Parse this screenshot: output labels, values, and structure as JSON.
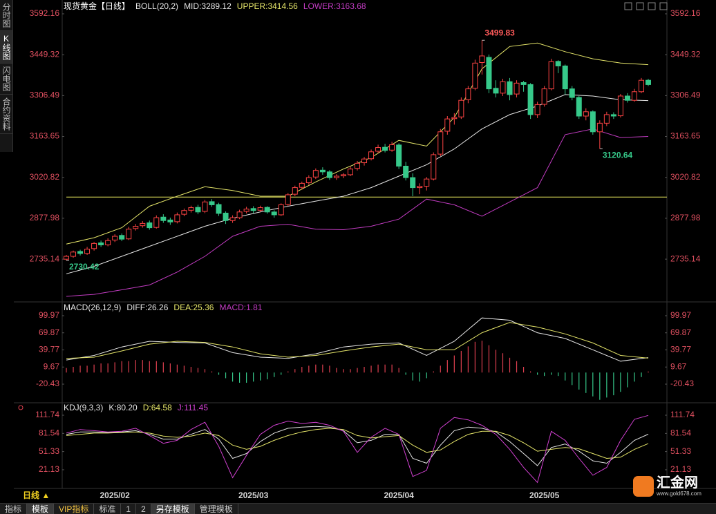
{
  "ui": {
    "sidebar": [
      "分时图",
      "K线图",
      "闪电图",
      "合约资料"
    ],
    "period": "日线 ▲",
    "dates": [
      "2025/02",
      "2025/03",
      "2025/04",
      "2025/05"
    ],
    "toolbar": [
      "指标",
      "模板",
      "VIP指标",
      "标准",
      "1",
      "2",
      "另存模板",
      "管理模板"
    ],
    "logo": "汇金网",
    "logo_url": "www.gold678.com"
  },
  "chart_data": [
    {
      "type": "candlestick",
      "title": "现货黄金【日线】",
      "indicator": "BOLL(20,2)",
      "up_color": "#ff4444",
      "down_color": "#36c98a",
      "tick_color": "#e05060",
      "candles": [
        [
          2735,
          2750,
          2730.42,
          2745
        ],
        [
          2745,
          2765,
          2740,
          2760
        ],
        [
          2762,
          2768,
          2748,
          2755
        ],
        [
          2755,
          2778,
          2750,
          2770
        ],
        [
          2772,
          2795,
          2765,
          2790
        ],
        [
          2792,
          2800,
          2778,
          2785
        ],
        [
          2785,
          2808,
          2780,
          2800
        ],
        [
          2802,
          2822,
          2795,
          2815
        ],
        [
          2818,
          2825,
          2798,
          2805
        ],
        [
          2806,
          2848,
          2802,
          2840
        ],
        [
          2842,
          2858,
          2835,
          2850
        ],
        [
          2852,
          2868,
          2845,
          2860
        ],
        [
          2862,
          2870,
          2838,
          2845
        ],
        [
          2846,
          2888,
          2842,
          2880
        ],
        [
          2882,
          2892,
          2862,
          2870
        ],
        [
          2872,
          2880,
          2855,
          2865
        ],
        [
          2866,
          2898,
          2860,
          2890
        ],
        [
          2892,
          2912,
          2885,
          2905
        ],
        [
          2906,
          2922,
          2898,
          2915
        ],
        [
          2916,
          2925,
          2892,
          2900
        ],
        [
          2902,
          2942,
          2896,
          2935
        ],
        [
          2936,
          2945,
          2918,
          2925
        ],
        [
          2926,
          2932,
          2886,
          2895
        ],
        [
          2896,
          2902,
          2858,
          2870
        ],
        [
          2870,
          2888,
          2862,
          2880
        ],
        [
          2880,
          2908,
          2875,
          2900
        ],
        [
          2902,
          2918,
          2895,
          2910
        ],
        [
          2912,
          2920,
          2896,
          2905
        ],
        [
          2906,
          2922,
          2900,
          2915
        ],
        [
          2916,
          2920,
          2894,
          2900
        ],
        [
          2900,
          2906,
          2880,
          2890
        ],
        [
          2890,
          2930,
          2886,
          2925
        ],
        [
          2926,
          2966,
          2920,
          2960
        ],
        [
          2962,
          2992,
          2955,
          2985
        ],
        [
          2986,
          3006,
          2978,
          3000
        ],
        [
          3002,
          3028,
          2995,
          3020
        ],
        [
          3022,
          3052,
          3015,
          3045
        ],
        [
          3046,
          3056,
          3030,
          3040
        ],
        [
          3040,
          3046,
          3012,
          3020
        ],
        [
          3020,
          3032,
          3012,
          3025
        ],
        [
          3026,
          3036,
          3018,
          3030
        ],
        [
          3030,
          3058,
          3025,
          3050
        ],
        [
          3052,
          3078,
          3045,
          3070
        ],
        [
          3072,
          3092,
          3062,
          3085
        ],
        [
          3086,
          3118,
          3080,
          3110
        ],
        [
          3112,
          3135,
          3105,
          3125
        ],
        [
          3126,
          3138,
          3108,
          3115
        ],
        [
          3116,
          3145,
          3110,
          3135
        ],
        [
          3134,
          3140,
          3050,
          3060
        ],
        [
          3060,
          3075,
          3010,
          3020
        ],
        [
          3020,
          3035,
          2955,
          2985
        ],
        [
          2985,
          3000,
          2962,
          2990
        ],
        [
          2990,
          3022,
          2975,
          3015
        ],
        [
          3015,
          3108,
          3010,
          3100
        ],
        [
          3102,
          3190,
          3095,
          3180
        ],
        [
          3182,
          3235,
          3170,
          3225
        ],
        [
          3226,
          3245,
          3205,
          3230
        ],
        [
          3232,
          3300,
          3225,
          3290
        ],
        [
          3292,
          3340,
          3280,
          3330
        ],
        [
          3332,
          3432,
          3325,
          3420
        ],
        [
          3422,
          3499.83,
          3380,
          3445
        ],
        [
          3440,
          3450,
          3315,
          3330
        ],
        [
          3332,
          3360,
          3300,
          3315
        ],
        [
          3315,
          3365,
          3305,
          3355
        ],
        [
          3355,
          3368,
          3290,
          3310
        ],
        [
          3312,
          3360,
          3300,
          3350
        ],
        [
          3352,
          3358,
          3320,
          3345
        ],
        [
          3345,
          3350,
          3225,
          3240
        ],
        [
          3240,
          3285,
          3228,
          3275
        ],
        [
          3276,
          3340,
          3268,
          3330
        ],
        [
          3330,
          3435,
          3325,
          3425
        ],
        [
          3426,
          3430,
          3385,
          3410
        ],
        [
          3410,
          3415,
          3310,
          3330
        ],
        [
          3330,
          3340,
          3290,
          3300
        ],
        [
          3300,
          3305,
          3225,
          3235
        ],
        [
          3235,
          3262,
          3220,
          3250
        ],
        [
          3250,
          3255,
          3170,
          3180
        ],
        [
          3180,
          3220,
          3120.64,
          3210
        ],
        [
          3210,
          3250,
          3200,
          3240
        ],
        [
          3240,
          3248,
          3225,
          3235
        ],
        [
          3236,
          3312,
          3230,
          3305
        ],
        [
          3305,
          3315,
          3282,
          3290
        ],
        [
          3290,
          3330,
          3285,
          3320
        ],
        [
          3320,
          3368,
          3315,
          3360
        ],
        [
          3360,
          3365,
          3340,
          3345
        ]
      ],
      "series": [
        {
          "name": "MID:3289.12",
          "color": "#e6e6e6",
          "values": [
            2684,
            2710,
            2745,
            2780,
            2815,
            2850,
            2878,
            2900,
            2920,
            2938,
            2955,
            2985,
            3025,
            3065,
            3120,
            3190,
            3240,
            3270,
            3310,
            3305,
            3292,
            3289.12
          ]
        },
        {
          "name": "UPPER:3414.56",
          "color": "#e6e66a",
          "values": [
            2788,
            2810,
            2845,
            2920,
            2955,
            2988,
            2975,
            2955,
            2955,
            3005,
            3050,
            3090,
            3150,
            3130,
            3230,
            3400,
            3478,
            3490,
            3460,
            3435,
            3420,
            3414.56
          ]
        },
        {
          "name": "LOWER:3163.68",
          "color": "#c23cc2",
          "values": [
            2605,
            2612,
            2628,
            2645,
            2690,
            2745,
            2815,
            2850,
            2857,
            2840,
            2838,
            2850,
            2875,
            2945,
            2925,
            2885,
            2935,
            2985,
            3170,
            3190,
            3160,
            3163.68
          ]
        }
      ],
      "horizontal_line": {
        "value": 2952,
        "color": "#f0f060"
      },
      "ylim": [
        2588.2,
        3621.1
      ],
      "yticks": [
        2735.14,
        2877.98,
        3020.82,
        3163.65,
        3306.49,
        3449.32,
        3592.16
      ]
    },
    {
      "type": "macd",
      "indicator": "MACD(26,12,9)",
      "tick_color": "#e05060",
      "series": [
        {
          "name": "DIFF:26.26",
          "color": "#e6e6e6",
          "values": [
            22,
            30,
            45,
            55,
            53,
            52,
            35,
            27,
            25,
            33,
            45,
            50,
            52,
            30,
            55,
            96,
            92,
            70,
            60,
            40,
            20,
            26.26
          ]
        },
        {
          "name": "DEA:25.36",
          "color": "#e6e66a",
          "values": [
            25,
            27,
            38,
            50,
            55,
            53,
            45,
            33,
            27,
            30,
            38,
            45,
            50,
            40,
            40,
            70,
            88,
            80,
            68,
            52,
            30,
            25.36
          ]
        }
      ],
      "histogram": {
        "name": "MACD:1.81",
        "color": "#c23cc2",
        "up_color": "#e04050",
        "down_color": "#36c98a",
        "values": [
          8,
          10,
          12,
          12,
          14,
          16,
          16,
          18,
          20,
          20,
          22,
          22,
          20,
          20,
          18,
          16,
          14,
          12,
          10,
          8,
          6,
          2,
          -4,
          -10,
          -16,
          -18,
          -18,
          -16,
          -14,
          -12,
          -8,
          -4,
          2,
          6,
          10,
          12,
          14,
          14,
          12,
          8,
          6,
          6,
          8,
          10,
          12,
          14,
          14,
          14,
          8,
          -4,
          -14,
          -16,
          -10,
          2,
          12,
          22,
          30,
          38,
          46,
          54,
          56,
          48,
          40,
          34,
          26,
          20,
          10,
          2,
          -4,
          -6,
          -4,
          -6,
          -14,
          -22,
          -30,
          -36,
          -42,
          -48,
          -44,
          -40,
          -34,
          -26,
          -16,
          -8,
          1.81
        ]
      },
      "ylim": [
        -52,
        120.6
      ],
      "yticks": [
        -20.43,
        9.67,
        39.77,
        69.87,
        99.97
      ]
    },
    {
      "type": "line",
      "indicator": "KDJ(9,3,3)",
      "tick_color": "#e05060",
      "series": [
        {
          "name": "K:80.20",
          "color": "#e6e6e6",
          "values": [
            80,
            84,
            84,
            83,
            84,
            86,
            80,
            72,
            72,
            80,
            88,
            72,
            40,
            48,
            68,
            82,
            90,
            92,
            93,
            92,
            86,
            66,
            70,
            80,
            80,
            40,
            32,
            62,
            86,
            92,
            90,
            84,
            68,
            48,
            28,
            58,
            64,
            52,
            36,
            32,
            50,
            70,
            80.2
          ]
        },
        {
          "name": "D:64.58",
          "color": "#e6e66a",
          "values": [
            78,
            80,
            82,
            82,
            83,
            84,
            82,
            77,
            75,
            77,
            82,
            78,
            62,
            55,
            60,
            70,
            78,
            84,
            88,
            90,
            88,
            78,
            74,
            76,
            78,
            62,
            50,
            54,
            68,
            80,
            85,
            85,
            78,
            66,
            52,
            55,
            58,
            56,
            48,
            40,
            42,
            55,
            64.58
          ]
        },
        {
          "name": "J:111.45",
          "color": "#d040d0",
          "values": [
            82,
            88,
            86,
            84,
            85,
            90,
            78,
            65,
            70,
            88,
            100,
            60,
            8,
            45,
            80,
            95,
            102,
            98,
            100,
            95,
            85,
            50,
            75,
            90,
            80,
            10,
            20,
            90,
            108,
            104,
            95,
            80,
            55,
            25,
            0,
            85,
            70,
            40,
            12,
            25,
            70,
            105,
            111.45
          ]
        }
      ],
      "ylim": [
        -7.6,
        130.1
      ],
      "yticks": [
        21.13,
        51.33,
        81.54,
        111.74
      ]
    }
  ]
}
